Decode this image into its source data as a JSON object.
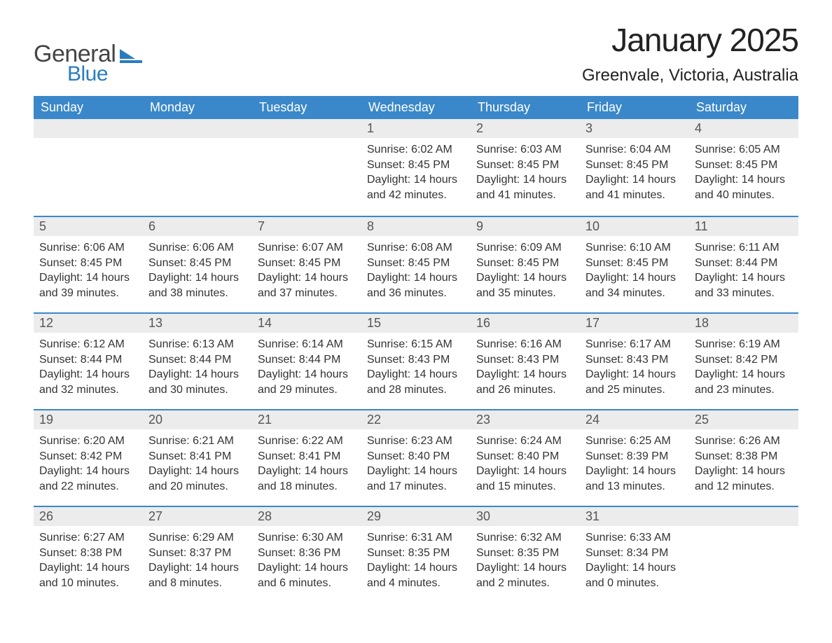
{
  "logo": {
    "general": "General",
    "blue": "Blue",
    "icon_color": "#2b7cbe"
  },
  "title": "January 2025",
  "location": "Greenvale, Victoria, Australia",
  "colors": {
    "header_bg": "#3a88c9",
    "header_text": "#ffffff",
    "daynum_bg": "#ececec",
    "row_border": "#3a88c9",
    "body_text": "#333333",
    "page_bg": "#ffffff"
  },
  "weekdays": [
    "Sunday",
    "Monday",
    "Tuesday",
    "Wednesday",
    "Thursday",
    "Friday",
    "Saturday"
  ],
  "grid": [
    [
      null,
      null,
      null,
      {
        "n": "1",
        "sunrise": "Sunrise: 6:02 AM",
        "sunset": "Sunset: 8:45 PM",
        "day1": "Daylight: 14 hours",
        "day2": "and 42 minutes."
      },
      {
        "n": "2",
        "sunrise": "Sunrise: 6:03 AM",
        "sunset": "Sunset: 8:45 PM",
        "day1": "Daylight: 14 hours",
        "day2": "and 41 minutes."
      },
      {
        "n": "3",
        "sunrise": "Sunrise: 6:04 AM",
        "sunset": "Sunset: 8:45 PM",
        "day1": "Daylight: 14 hours",
        "day2": "and 41 minutes."
      },
      {
        "n": "4",
        "sunrise": "Sunrise: 6:05 AM",
        "sunset": "Sunset: 8:45 PM",
        "day1": "Daylight: 14 hours",
        "day2": "and 40 minutes."
      }
    ],
    [
      {
        "n": "5",
        "sunrise": "Sunrise: 6:06 AM",
        "sunset": "Sunset: 8:45 PM",
        "day1": "Daylight: 14 hours",
        "day2": "and 39 minutes."
      },
      {
        "n": "6",
        "sunrise": "Sunrise: 6:06 AM",
        "sunset": "Sunset: 8:45 PM",
        "day1": "Daylight: 14 hours",
        "day2": "and 38 minutes."
      },
      {
        "n": "7",
        "sunrise": "Sunrise: 6:07 AM",
        "sunset": "Sunset: 8:45 PM",
        "day1": "Daylight: 14 hours",
        "day2": "and 37 minutes."
      },
      {
        "n": "8",
        "sunrise": "Sunrise: 6:08 AM",
        "sunset": "Sunset: 8:45 PM",
        "day1": "Daylight: 14 hours",
        "day2": "and 36 minutes."
      },
      {
        "n": "9",
        "sunrise": "Sunrise: 6:09 AM",
        "sunset": "Sunset: 8:45 PM",
        "day1": "Daylight: 14 hours",
        "day2": "and 35 minutes."
      },
      {
        "n": "10",
        "sunrise": "Sunrise: 6:10 AM",
        "sunset": "Sunset: 8:45 PM",
        "day1": "Daylight: 14 hours",
        "day2": "and 34 minutes."
      },
      {
        "n": "11",
        "sunrise": "Sunrise: 6:11 AM",
        "sunset": "Sunset: 8:44 PM",
        "day1": "Daylight: 14 hours",
        "day2": "and 33 minutes."
      }
    ],
    [
      {
        "n": "12",
        "sunrise": "Sunrise: 6:12 AM",
        "sunset": "Sunset: 8:44 PM",
        "day1": "Daylight: 14 hours",
        "day2": "and 32 minutes."
      },
      {
        "n": "13",
        "sunrise": "Sunrise: 6:13 AM",
        "sunset": "Sunset: 8:44 PM",
        "day1": "Daylight: 14 hours",
        "day2": "and 30 minutes."
      },
      {
        "n": "14",
        "sunrise": "Sunrise: 6:14 AM",
        "sunset": "Sunset: 8:44 PM",
        "day1": "Daylight: 14 hours",
        "day2": "and 29 minutes."
      },
      {
        "n": "15",
        "sunrise": "Sunrise: 6:15 AM",
        "sunset": "Sunset: 8:43 PM",
        "day1": "Daylight: 14 hours",
        "day2": "and 28 minutes."
      },
      {
        "n": "16",
        "sunrise": "Sunrise: 6:16 AM",
        "sunset": "Sunset: 8:43 PM",
        "day1": "Daylight: 14 hours",
        "day2": "and 26 minutes."
      },
      {
        "n": "17",
        "sunrise": "Sunrise: 6:17 AM",
        "sunset": "Sunset: 8:43 PM",
        "day1": "Daylight: 14 hours",
        "day2": "and 25 minutes."
      },
      {
        "n": "18",
        "sunrise": "Sunrise: 6:19 AM",
        "sunset": "Sunset: 8:42 PM",
        "day1": "Daylight: 14 hours",
        "day2": "and 23 minutes."
      }
    ],
    [
      {
        "n": "19",
        "sunrise": "Sunrise: 6:20 AM",
        "sunset": "Sunset: 8:42 PM",
        "day1": "Daylight: 14 hours",
        "day2": "and 22 minutes."
      },
      {
        "n": "20",
        "sunrise": "Sunrise: 6:21 AM",
        "sunset": "Sunset: 8:41 PM",
        "day1": "Daylight: 14 hours",
        "day2": "and 20 minutes."
      },
      {
        "n": "21",
        "sunrise": "Sunrise: 6:22 AM",
        "sunset": "Sunset: 8:41 PM",
        "day1": "Daylight: 14 hours",
        "day2": "and 18 minutes."
      },
      {
        "n": "22",
        "sunrise": "Sunrise: 6:23 AM",
        "sunset": "Sunset: 8:40 PM",
        "day1": "Daylight: 14 hours",
        "day2": "and 17 minutes."
      },
      {
        "n": "23",
        "sunrise": "Sunrise: 6:24 AM",
        "sunset": "Sunset: 8:40 PM",
        "day1": "Daylight: 14 hours",
        "day2": "and 15 minutes."
      },
      {
        "n": "24",
        "sunrise": "Sunrise: 6:25 AM",
        "sunset": "Sunset: 8:39 PM",
        "day1": "Daylight: 14 hours",
        "day2": "and 13 minutes."
      },
      {
        "n": "25",
        "sunrise": "Sunrise: 6:26 AM",
        "sunset": "Sunset: 8:38 PM",
        "day1": "Daylight: 14 hours",
        "day2": "and 12 minutes."
      }
    ],
    [
      {
        "n": "26",
        "sunrise": "Sunrise: 6:27 AM",
        "sunset": "Sunset: 8:38 PM",
        "day1": "Daylight: 14 hours",
        "day2": "and 10 minutes."
      },
      {
        "n": "27",
        "sunrise": "Sunrise: 6:29 AM",
        "sunset": "Sunset: 8:37 PM",
        "day1": "Daylight: 14 hours",
        "day2": "and 8 minutes."
      },
      {
        "n": "28",
        "sunrise": "Sunrise: 6:30 AM",
        "sunset": "Sunset: 8:36 PM",
        "day1": "Daylight: 14 hours",
        "day2": "and 6 minutes."
      },
      {
        "n": "29",
        "sunrise": "Sunrise: 6:31 AM",
        "sunset": "Sunset: 8:35 PM",
        "day1": "Daylight: 14 hours",
        "day2": "and 4 minutes."
      },
      {
        "n": "30",
        "sunrise": "Sunrise: 6:32 AM",
        "sunset": "Sunset: 8:35 PM",
        "day1": "Daylight: 14 hours",
        "day2": "and 2 minutes."
      },
      {
        "n": "31",
        "sunrise": "Sunrise: 6:33 AM",
        "sunset": "Sunset: 8:34 PM",
        "day1": "Daylight: 14 hours",
        "day2": "and 0 minutes."
      },
      null
    ]
  ]
}
